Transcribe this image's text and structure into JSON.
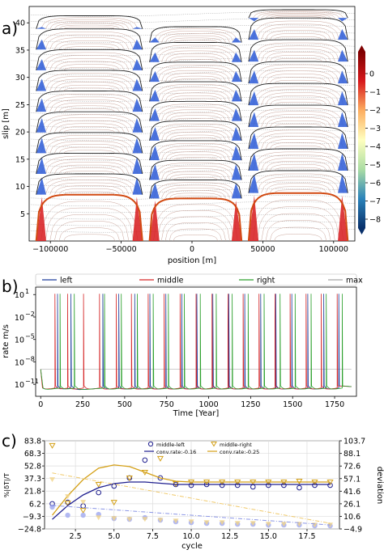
{
  "panels": {
    "a": {
      "letter": "a)"
    },
    "b": {
      "letter": "b)"
    },
    "c": {
      "letter": "c)"
    }
  },
  "chart_data": [
    {
      "type": "line",
      "panel": "a",
      "xlabel": "position [m]",
      "ylabel": "slip [m]",
      "xlim": [
        -115000,
        115000
      ],
      "ylim": [
        0,
        43
      ],
      "xticks": [
        -100000,
        -50000,
        0,
        50000,
        100000
      ],
      "xtick_labels": [
        "−100000",
        "−50000",
        "0",
        "50000",
        "100000"
      ],
      "yticks": [
        5,
        10,
        15,
        20,
        25,
        30,
        35,
        40
      ],
      "ytick_labels": [
        "5",
        "10",
        "15",
        "20",
        "25",
        "30",
        "35",
        "40"
      ],
      "asperities": [
        {
          "name": "left",
          "xmin": -110000,
          "xmax": -35000
        },
        {
          "name": "middle",
          "xmin": -30000,
          "xmax": 35000
        },
        {
          "name": "right",
          "xmin": 40000,
          "xmax": 110000
        }
      ],
      "events": [
        {
          "asperity": "left",
          "top": [
            8.5,
            12.3,
            16.1,
            19.9,
            23.7,
            27.5,
            31.3,
            35.1,
            38.9,
            41.3
          ]
        },
        {
          "asperity": "middle",
          "top": [
            7.8,
            11.2,
            14.8,
            18.4,
            22.0,
            25.6,
            29.2,
            32.8,
            36.4,
            39.3
          ]
        },
        {
          "asperity": "right",
          "top": [
            8.8,
            12.9,
            16.9,
            20.9,
            24.9,
            28.9,
            32.9,
            36.9,
            40.9,
            42.4
          ]
        }
      ],
      "colorbar": {
        "ticks": [
          0,
          -1,
          -2,
          -3,
          -4,
          -5,
          -6,
          -7,
          -8
        ],
        "tick_labels": [
          "0",
          "−1",
          "−2",
          "−3",
          "−4",
          "−5",
          "−6",
          "−7",
          "−8"
        ],
        "colors": [
          "#7f0000",
          "#d7191c",
          "#fdae61",
          "#ffffbf",
          "#abdda4",
          "#2b83ba",
          "#08306b"
        ]
      }
    },
    {
      "type": "line",
      "panel": "b",
      "xlabel": "Time [Year]",
      "ylabel": "rate m/s",
      "scale": "log",
      "xlim": [
        -30,
        1880
      ],
      "ylim_log10": [
        -12.6,
        2
      ],
      "xticks": [
        0,
        250,
        500,
        750,
        1000,
        1250,
        1500,
        1750
      ],
      "xtick_labels": [
        "0",
        "250",
        "500",
        "750",
        "1000",
        "1250",
        "1500",
        "1750"
      ],
      "yticks_log10": [
        1,
        -2,
        -5,
        -8,
        -11
      ],
      "ytick_labels": [
        "10",
        "10",
        "10",
        "10",
        "10"
      ],
      "ytick_exponents": [
        "1",
        "−2",
        "−5",
        "−8",
        "−11"
      ],
      "background_rate_log10": -11.8,
      "plate_rate_log10": -9.0,
      "series": [
        {
          "name": "left",
          "color": "#1f3f9e",
          "events": [
            100,
            180,
            370,
            465,
            560,
            650,
            745,
            840,
            930,
            1025,
            1120,
            1215,
            1310,
            1400,
            1495,
            1590,
            1685,
            1775
          ]
        },
        {
          "name": "middle",
          "color": "#d62728",
          "events": [
            85,
            160,
            255,
            350,
            450,
            540,
            640,
            735,
            830,
            925,
            1020,
            1115,
            1205,
            1300,
            1395,
            1485,
            1580,
            1670,
            1765
          ]
        },
        {
          "name": "right",
          "color": "#2ca02c",
          "events": [
            115,
            200,
            380,
            480,
            575,
            670,
            760,
            855,
            950,
            1045,
            1140,
            1235,
            1330,
            1425,
            1515,
            1610,
            1700,
            1795
          ]
        },
        {
          "name": "max",
          "color": "#a8a8a8",
          "events": []
        }
      ]
    },
    {
      "type": "scatter",
      "panel": "c",
      "xlabel": "cycle",
      "ylabel": "%|δT|/T",
      "ylabel_right": "deviation",
      "xlim": [
        0.5,
        19.6
      ],
      "ylim": [
        -24.8,
        83.8
      ],
      "ylim_right": [
        -4.9,
        103.7
      ],
      "xticks": [
        2.5,
        5.0,
        7.5,
        10.0,
        12.5,
        15.0,
        17.5
      ],
      "xtick_labels": [
        "2.5",
        "5.0",
        "7.5",
        "10.0",
        "12.5",
        "15.0",
        "17.5"
      ],
      "yticks": [
        83.8,
        68.3,
        52.8,
        37.3,
        21.8,
        6.2,
        -9.3,
        -24.8
      ],
      "ytick_labels": [
        "83.8",
        "68.3",
        "52.8",
        "37.3",
        "21.8",
        "6.2",
        "−9.3",
        "−24.8"
      ],
      "yticks_right": [
        103.7,
        88.1,
        72.6,
        57.1,
        41.6,
        26.1,
        10.6,
        -4.9
      ],
      "ytick_labels_right": [
        "103.7",
        "88.1",
        "72.6",
        "57.1",
        "41.6",
        "26.1",
        "10.6",
        "−4.9"
      ],
      "legend": {
        "placement": "top-center",
        "entries": [
          "middle-left",
          "middle-right",
          "conv.rate:-0.16",
          "conv.rate:-0.25"
        ]
      },
      "series": [
        {
          "name": "middle-left",
          "marker": "circle",
          "color": "#1f1f8f",
          "x": [
            1,
            2,
            3,
            4,
            5,
            6,
            7,
            8,
            9,
            10,
            11,
            12,
            13,
            14,
            15,
            16,
            17,
            18,
            19
          ],
          "y": [
            6.2,
            8.0,
            3.5,
            20.0,
            28.0,
            38.0,
            60.0,
            38.0,
            30.0,
            29.0,
            30.0,
            29.0,
            29.0,
            27.0,
            29.0,
            29.0,
            26.0,
            29.0,
            29.0
          ]
        },
        {
          "name": "middle-right",
          "marker": "triangle-down",
          "color": "#d4a017",
          "x": [
            1,
            2,
            3,
            4,
            5,
            6,
            7,
            8,
            9,
            10,
            11,
            12,
            13,
            14,
            15,
            16,
            17,
            18,
            19
          ],
          "y": [
            78.0,
            7.0,
            -2.0,
            30.0,
            8.0,
            38.0,
            45.0,
            62.0,
            31.0,
            33.0,
            33.0,
            33.0,
            33.0,
            33.0,
            33.0,
            33.0,
            34.0,
            33.0,
            33.0
          ]
        },
        {
          "name": "middle-left fit",
          "color": "#1f1f8f",
          "x": [
            1,
            2,
            3,
            4,
            5,
            6,
            7,
            8,
            9,
            10,
            12,
            14,
            16,
            18,
            19
          ],
          "y": [
            -13,
            4,
            17,
            26,
            31,
            33,
            33,
            31.5,
            30,
            30,
            30,
            30,
            30,
            30,
            30
          ]
        },
        {
          "name": "middle-right fit",
          "color": "#d4a017",
          "x": [
            1,
            2,
            3,
            4,
            5,
            6,
            7,
            8,
            9,
            10,
            12,
            14,
            16,
            18,
            19
          ],
          "y": [
            -8,
            16,
            36,
            50,
            54,
            52,
            45,
            38,
            34,
            33,
            33,
            33,
            33,
            33,
            33
          ]
        },
        {
          "name": "middle-left deviation",
          "marker": "filled-circle",
          "color": "#9fa8ef",
          "axis": "right",
          "x": [
            1,
            2,
            3,
            4,
            5,
            6,
            7,
            8,
            9,
            10,
            11,
            12,
            13,
            14,
            15,
            16,
            17,
            18,
            19
          ],
          "y": [
            22,
            12,
            12,
            13,
            8,
            7,
            9,
            6,
            4,
            3,
            2,
            2,
            1,
            1,
            0,
            0,
            0,
            -1,
            -1
          ]
        },
        {
          "name": "middle-right deviation",
          "marker": "filled-triangle-down",
          "color": "#f1d48a",
          "axis": "right",
          "x": [
            1,
            2,
            3,
            4,
            5,
            6,
            7,
            8,
            9,
            10,
            11,
            12,
            13,
            14,
            15,
            16,
            17,
            18,
            19
          ],
          "y": [
            56,
            35,
            28,
            9,
            8,
            7,
            7,
            6,
            5,
            4,
            3,
            3,
            2,
            2,
            1,
            1,
            1,
            0,
            0
          ]
        },
        {
          "name": "conv.rate:-0.16",
          "color": "#8a95e6",
          "axis": "right",
          "dash": true,
          "x": [
            1,
            19
          ],
          "y": [
            24,
            0
          ]
        },
        {
          "name": "conv.rate:-0.25",
          "color": "#f0c96a",
          "axis": "right",
          "dash": true,
          "x": [
            1,
            19
          ],
          "y": [
            64,
            2
          ]
        }
      ]
    }
  ]
}
